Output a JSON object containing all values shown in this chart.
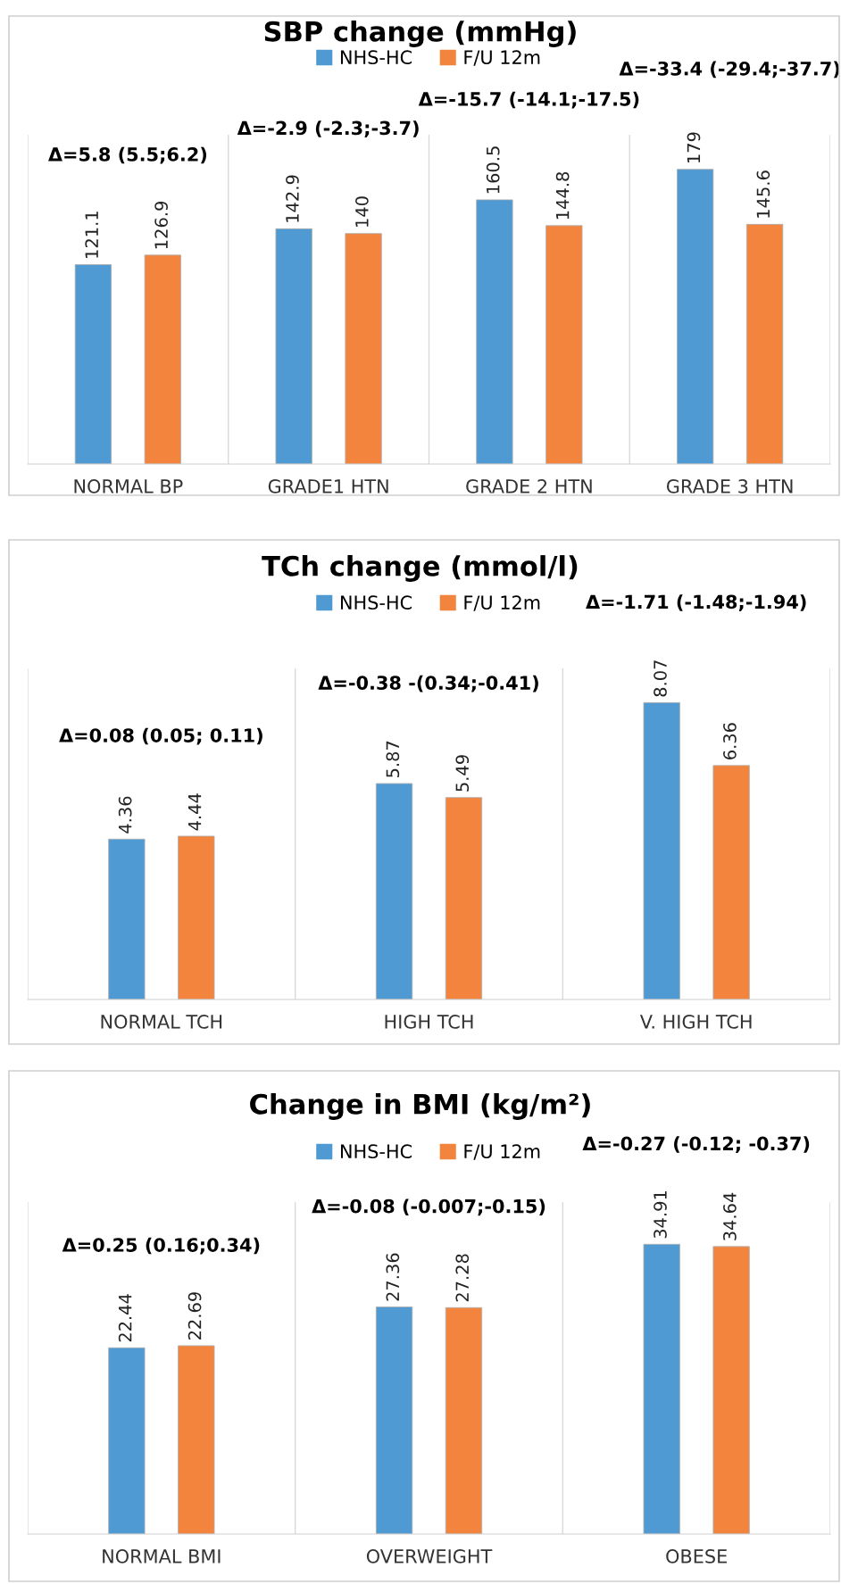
{
  "chart_data": [
    {
      "type": "bar",
      "title": "SBP change (mmHg)",
      "categories": [
        "NORMAL BP",
        "GRADE1 HTN",
        "GRADE 2 HTN",
        "GRADE 3 HTN"
      ],
      "series": [
        {
          "name": "NHS-HC",
          "color": "#4f9ad2",
          "values": [
            121.1,
            142.9,
            160.5,
            179
          ]
        },
        {
          "name": "F/U 12m",
          "color": "#f2843e",
          "values": [
            126.9,
            140,
            144.8,
            145.6
          ]
        }
      ],
      "ylim": [
        0,
        200
      ],
      "data_labels": true,
      "legend": "top",
      "grid": "x",
      "tick_labels": "x",
      "annotations": [
        "Δ=5.8 (5.5;6.2)",
        "Δ=-2.9 (-2.3;-3.7)",
        "Δ=-15.7 (-14.1;-17.5)",
        "Δ=-33.4 (-29.4;-37.7)"
      ]
    },
    {
      "type": "bar",
      "title": "TCh change (mmol/l)",
      "categories": [
        "NORMAL TCH",
        "HIGH TCH",
        "V. HIGH TCH"
      ],
      "series": [
        {
          "name": "NHS-HC",
          "color": "#4f9ad2",
          "values": [
            4.36,
            5.87,
            8.07
          ]
        },
        {
          "name": "F/U 12m",
          "color": "#f2843e",
          "values": [
            4.44,
            5.49,
            6.36
          ]
        }
      ],
      "ylim": [
        0,
        9
      ],
      "data_labels": true,
      "legend": "top",
      "grid": "x",
      "tick_labels": "x",
      "annotations": [
        "Δ=0.08 (0.05; 0.11)",
        "Δ=-0.38 -(0.34;-0.41)",
        "Δ=-1.71 (-1.48;-1.94)"
      ]
    },
    {
      "type": "bar",
      "title": "Change in BMI (kg/m²)",
      "categories": [
        "NORMAL BMI",
        "OVERWEIGHT",
        "OBESE"
      ],
      "series": [
        {
          "name": "NHS-HC",
          "color": "#4f9ad2",
          "values": [
            22.44,
            27.36,
            34.91
          ]
        },
        {
          "name": "F/U 12m",
          "color": "#f2843e",
          "values": [
            22.69,
            27.28,
            34.64
          ]
        }
      ],
      "ylim": [
        0,
        40
      ],
      "data_labels": true,
      "legend": "top",
      "grid": "x",
      "tick_labels": "x",
      "annotations": [
        "Δ=0.25 (0.16;0.34)",
        "Δ=-0.08 (-0.007;-0.15)",
        "Δ=-0.27 (-0.12; -0.37)"
      ]
    }
  ]
}
